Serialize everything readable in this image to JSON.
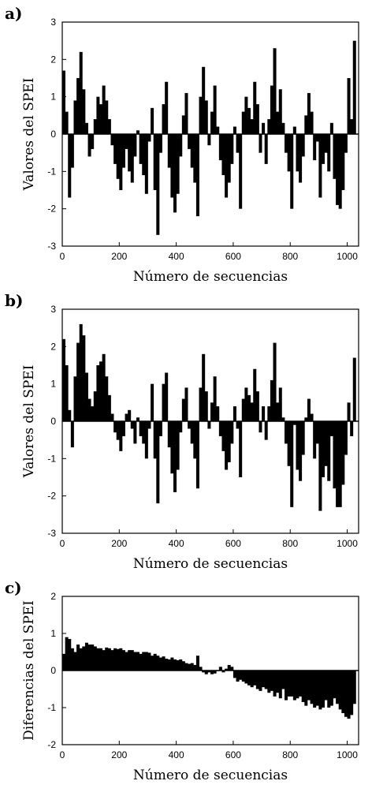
{
  "chart_data": [
    {
      "panel": "a)",
      "type": "bar",
      "xlabel": "Número de secuencias",
      "ylabel": "Valores del SPEI",
      "xlim": [
        0,
        1040
      ],
      "ylim": [
        -3,
        3
      ],
      "xticks": [
        0,
        200,
        400,
        600,
        800,
        1000
      ],
      "yticks": [
        -3,
        -2,
        -1,
        0,
        1,
        2,
        3
      ],
      "grid": false,
      "x": [
        0,
        10,
        20,
        30,
        40,
        50,
        60,
        70,
        80,
        90,
        100,
        110,
        120,
        130,
        140,
        150,
        160,
        170,
        180,
        190,
        200,
        210,
        220,
        230,
        240,
        250,
        260,
        270,
        280,
        290,
        300,
        310,
        320,
        330,
        340,
        350,
        360,
        370,
        380,
        390,
        400,
        410,
        420,
        430,
        440,
        450,
        460,
        470,
        480,
        490,
        500,
        510,
        520,
        530,
        540,
        550,
        560,
        570,
        580,
        590,
        600,
        610,
        620,
        630,
        640,
        650,
        660,
        670,
        680,
        690,
        700,
        710,
        720,
        730,
        740,
        750,
        760,
        770,
        780,
        790,
        800,
        810,
        820,
        830,
        840,
        850,
        860,
        870,
        880,
        890,
        900,
        910,
        920,
        930,
        940,
        950,
        960,
        970,
        980,
        990,
        1000,
        1010,
        1020
      ],
      "y": [
        1.7,
        0.6,
        -1.7,
        -0.9,
        0.9,
        1.5,
        2.2,
        1.2,
        0.3,
        -0.6,
        -0.4,
        0.4,
        1.0,
        0.8,
        1.3,
        0.9,
        0.4,
        -0.3,
        -0.8,
        -1.2,
        -1.5,
        -0.9,
        -0.4,
        -1.0,
        -1.3,
        -0.6,
        0.1,
        -0.8,
        -1.1,
        -1.6,
        -0.2,
        0.7,
        -1.5,
        -2.7,
        -0.5,
        0.8,
        1.4,
        -0.9,
        -1.7,
        -2.1,
        -1.6,
        -0.6,
        0.5,
        1.1,
        -0.4,
        -0.9,
        -1.3,
        -2.2,
        1.0,
        1.8,
        0.9,
        -0.3,
        0.6,
        1.3,
        0.2,
        -0.7,
        -1.1,
        -1.7,
        -1.3,
        -0.8,
        0.2,
        -0.5,
        -2.0,
        0.6,
        1.0,
        0.7,
        0.4,
        1.4,
        0.8,
        -0.5,
        0.3,
        -0.8,
        0.4,
        1.3,
        2.3,
        0.6,
        1.2,
        0.3,
        -0.5,
        -1.0,
        -2.0,
        0.2,
        -1.0,
        -1.3,
        -0.6,
        0.5,
        1.1,
        0.6,
        -0.7,
        -0.2,
        -1.7,
        -0.8,
        -0.5,
        -1.0,
        0.3,
        -1.2,
        -1.9,
        -2.0,
        -1.5,
        -0.5,
        1.5,
        0.4,
        2.5
      ]
    },
    {
      "panel": "b)",
      "type": "bar",
      "xlabel": "Número de secuencias",
      "ylabel": "Valores del SPEI",
      "xlim": [
        0,
        1040
      ],
      "ylim": [
        -3,
        3
      ],
      "xticks": [
        0,
        200,
        400,
        600,
        800,
        1000
      ],
      "yticks": [
        -3,
        -2,
        -1,
        0,
        1,
        2,
        3
      ],
      "grid": false,
      "x": [
        0,
        10,
        20,
        30,
        40,
        50,
        60,
        70,
        80,
        90,
        100,
        110,
        120,
        130,
        140,
        150,
        160,
        170,
        180,
        190,
        200,
        210,
        220,
        230,
        240,
        250,
        260,
        270,
        280,
        290,
        300,
        310,
        320,
        330,
        340,
        350,
        360,
        370,
        380,
        390,
        400,
        410,
        420,
        430,
        440,
        450,
        460,
        470,
        480,
        490,
        500,
        510,
        520,
        530,
        540,
        550,
        560,
        570,
        580,
        590,
        600,
        610,
        620,
        630,
        640,
        650,
        660,
        670,
        680,
        690,
        700,
        710,
        720,
        730,
        740,
        750,
        760,
        770,
        780,
        790,
        800,
        810,
        820,
        830,
        840,
        850,
        860,
        870,
        880,
        890,
        900,
        910,
        920,
        930,
        940,
        950,
        960,
        970,
        980,
        990,
        1000,
        1010,
        1020
      ],
      "y": [
        2.2,
        1.5,
        0.3,
        -0.7,
        1.2,
        2.1,
        2.6,
        2.3,
        1.3,
        0.6,
        0.4,
        0.8,
        1.5,
        1.6,
        1.8,
        1.2,
        0.7,
        0.2,
        -0.3,
        -0.5,
        -0.8,
        -0.4,
        0.2,
        0.3,
        -0.2,
        -0.6,
        0.1,
        -0.4,
        -0.6,
        -1.0,
        -0.2,
        1.0,
        -1.0,
        -2.2,
        -0.4,
        1.0,
        1.3,
        -0.7,
        -1.4,
        -1.9,
        -1.3,
        -0.3,
        0.6,
        0.9,
        -0.2,
        -0.6,
        -1.0,
        -1.8,
        0.9,
        1.8,
        0.8,
        -0.2,
        0.5,
        1.2,
        0.4,
        -0.4,
        -0.8,
        -1.3,
        -1.1,
        -0.6,
        0.4,
        -0.2,
        -1.5,
        0.6,
        0.9,
        0.7,
        0.5,
        1.4,
        0.8,
        -0.3,
        0.4,
        -0.5,
        0.4,
        1.1,
        2.1,
        0.5,
        0.9,
        0.1,
        -0.6,
        -1.2,
        -2.3,
        -0.1,
        -1.3,
        -1.6,
        -0.9,
        0.1,
        0.6,
        0.2,
        -1.0,
        -0.6,
        -2.4,
        -1.5,
        -1.2,
        -1.6,
        -0.4,
        -1.8,
        -2.3,
        -2.3,
        -1.7,
        -0.9,
        0.5,
        -0.4,
        1.7
      ]
    },
    {
      "panel": "c)",
      "type": "bar",
      "xlabel": "Número de secuencias",
      "ylabel": "Diferencias del SPEI",
      "xlim": [
        0,
        1040
      ],
      "ylim": [
        -2,
        2
      ],
      "xticks": [
        0,
        200,
        400,
        600,
        800,
        1000
      ],
      "yticks": [
        -2,
        -1,
        0,
        1,
        2
      ],
      "grid": false,
      "x": [
        0,
        10,
        20,
        30,
        40,
        50,
        60,
        70,
        80,
        90,
        100,
        110,
        120,
        130,
        140,
        150,
        160,
        170,
        180,
        190,
        200,
        210,
        220,
        230,
        240,
        250,
        260,
        270,
        280,
        290,
        300,
        310,
        320,
        330,
        340,
        350,
        360,
        370,
        380,
        390,
        400,
        410,
        420,
        430,
        440,
        450,
        460,
        470,
        480,
        490,
        500,
        510,
        520,
        530,
        540,
        550,
        560,
        570,
        580,
        590,
        600,
        610,
        620,
        630,
        640,
        650,
        660,
        670,
        680,
        690,
        700,
        710,
        720,
        730,
        740,
        750,
        760,
        770,
        780,
        790,
        800,
        810,
        820,
        830,
        840,
        850,
        860,
        870,
        880,
        890,
        900,
        910,
        920,
        930,
        940,
        950,
        960,
        970,
        980,
        990,
        1000,
        1010,
        1020
      ],
      "y": [
        0.45,
        0.9,
        0.85,
        0.6,
        0.5,
        0.7,
        0.6,
        0.65,
        0.75,
        0.7,
        0.7,
        0.65,
        0.6,
        0.6,
        0.55,
        0.62,
        0.6,
        0.55,
        0.6,
        0.58,
        0.6,
        0.55,
        0.5,
        0.55,
        0.55,
        0.5,
        0.5,
        0.45,
        0.5,
        0.5,
        0.48,
        0.4,
        0.45,
        0.4,
        0.35,
        0.38,
        0.32,
        0.3,
        0.35,
        0.3,
        0.28,
        0.3,
        0.25,
        0.2,
        0.18,
        0.2,
        0.15,
        0.4,
        0.1,
        -0.05,
        -0.1,
        -0.05,
        -0.1,
        -0.08,
        0.0,
        0.1,
        -0.05,
        0.05,
        0.15,
        0.1,
        -0.2,
        -0.3,
        -0.25,
        -0.3,
        -0.35,
        -0.4,
        -0.45,
        -0.4,
        -0.5,
        -0.55,
        -0.45,
        -0.5,
        -0.6,
        -0.55,
        -0.7,
        -0.6,
        -0.75,
        -0.5,
        -0.8,
        -0.7,
        -0.7,
        -0.8,
        -0.75,
        -0.7,
        -0.85,
        -0.95,
        -0.8,
        -0.9,
        -1.0,
        -0.95,
        -1.05,
        -1.0,
        -0.8,
        -1.0,
        -0.95,
        -0.75,
        -0.9,
        -1.05,
        -1.15,
        -1.25,
        -1.3,
        -1.2,
        -0.9
      ]
    }
  ]
}
